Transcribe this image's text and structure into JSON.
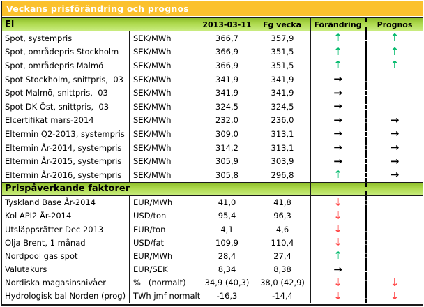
{
  "window": {
    "title": "Veckans prisförändring och prognos"
  },
  "table": {
    "columns": {
      "current": "2013-03-11",
      "previous": "Fg vecka",
      "change": "Förändring",
      "forecast": "Prognos"
    },
    "sections": [
      {
        "header": "El",
        "rows": [
          {
            "label": "Spot, systempris",
            "unit": "SEK/MWh",
            "current": "366,7",
            "previous": "357,9",
            "change": "up",
            "forecast": "up"
          },
          {
            "label": "Spot, områdepris Stockholm",
            "unit": "SEK/MWh",
            "current": "366,9",
            "previous": "351,5",
            "change": "up",
            "forecast": "up"
          },
          {
            "label": "Spot, områdepris Malmö",
            "unit": "SEK/MWh",
            "current": "366,9",
            "previous": "351,5",
            "change": "up",
            "forecast": "up"
          },
          {
            "label": "Spot Stockholm, snittpris,  03",
            "unit": "SEK/MWh",
            "current": "341,9",
            "previous": "341,9",
            "change": "right",
            "forecast": "none"
          },
          {
            "label": "Spot Malmö, snittpris,  03",
            "unit": "SEK/MWh",
            "current": "341,9",
            "previous": "341,9",
            "change": "right",
            "forecast": "none"
          },
          {
            "label": "Spot DK Öst, snittpris,  03",
            "unit": "SEK/MWh",
            "current": "324,5",
            "previous": "324,5",
            "change": "right",
            "forecast": "none"
          },
          {
            "label": "Elcertifikat mars-2014",
            "unit": "SEK/MWh",
            "current": "232,0",
            "previous": "236,0",
            "change": "right",
            "forecast": "right"
          },
          {
            "label": "Eltermin Q2-2013, systempris",
            "unit": "SEK/MWh",
            "current": "309,0",
            "previous": "313,1",
            "change": "right",
            "forecast": "right"
          },
          {
            "label": "Eltermin År-2014, systempris",
            "unit": "SEK/MWh",
            "current": "314,2",
            "previous": "313,1",
            "change": "right",
            "forecast": "right"
          },
          {
            "label": "Eltermin År-2015, systempris",
            "unit": "SEK/MWh",
            "current": "305,9",
            "previous": "303,9",
            "change": "right",
            "forecast": "right"
          },
          {
            "label": "Eltermin År-2016, systempris",
            "unit": "SEK/MWh",
            "current": "305,8",
            "previous": "296,8",
            "change": "up",
            "forecast": "right"
          }
        ]
      },
      {
        "header": "Prispåverkande faktorer",
        "rows": [
          {
            "label": "Tyskland Base År-2014",
            "unit": "EUR/MWh",
            "current": "41,0",
            "previous": "41,8",
            "change": "down",
            "forecast": "none"
          },
          {
            "label": "Kol API2 År-2014",
            "unit": "USD/ton",
            "current": "95,4",
            "previous": "96,3",
            "change": "down",
            "forecast": "none"
          },
          {
            "label": "Utsläppsrätter Dec 2013",
            "unit": "EUR/ton",
            "current": "4,1",
            "previous": "4,6",
            "change": "down",
            "forecast": "none"
          },
          {
            "label": "Olja Brent, 1 månad",
            "unit": "USD/fat",
            "current": "109,9",
            "previous": "110,4",
            "change": "down",
            "forecast": "none"
          },
          {
            "label": "Nordpool gas spot",
            "unit": "EUR/MWh",
            "current": "28,4",
            "previous": "27,4",
            "change": "up",
            "forecast": "none"
          },
          {
            "label": "Valutakurs",
            "unit": "EUR/SEK",
            "current": "8,34",
            "previous": "8,38",
            "change": "right",
            "forecast": "none"
          },
          {
            "label": "Nordiska magasinsnivåer",
            "unit": "%   (normalt)",
            "current": "34,9 (40,3)",
            "previous": "38,0 (42,9)",
            "change": "down",
            "forecast": "down"
          },
          {
            "label": "Hydrologisk bal Norden (prog)",
            "unit": "TWh jmf normalt",
            "current": "-16,3",
            "previous": "-14,4",
            "change": "down",
            "forecast": "down"
          }
        ]
      }
    ]
  },
  "icons": {
    "up": "↑",
    "down": "↓",
    "right": "→",
    "none": ""
  },
  "colors": {
    "title_bg": "#FBC12D",
    "band_green_top": "#8FBF2B",
    "band_green_bottom": "#C9EC80",
    "arrow_up": "#00B96B",
    "arrow_down": "#FF4545",
    "arrow_right": "#000000"
  }
}
